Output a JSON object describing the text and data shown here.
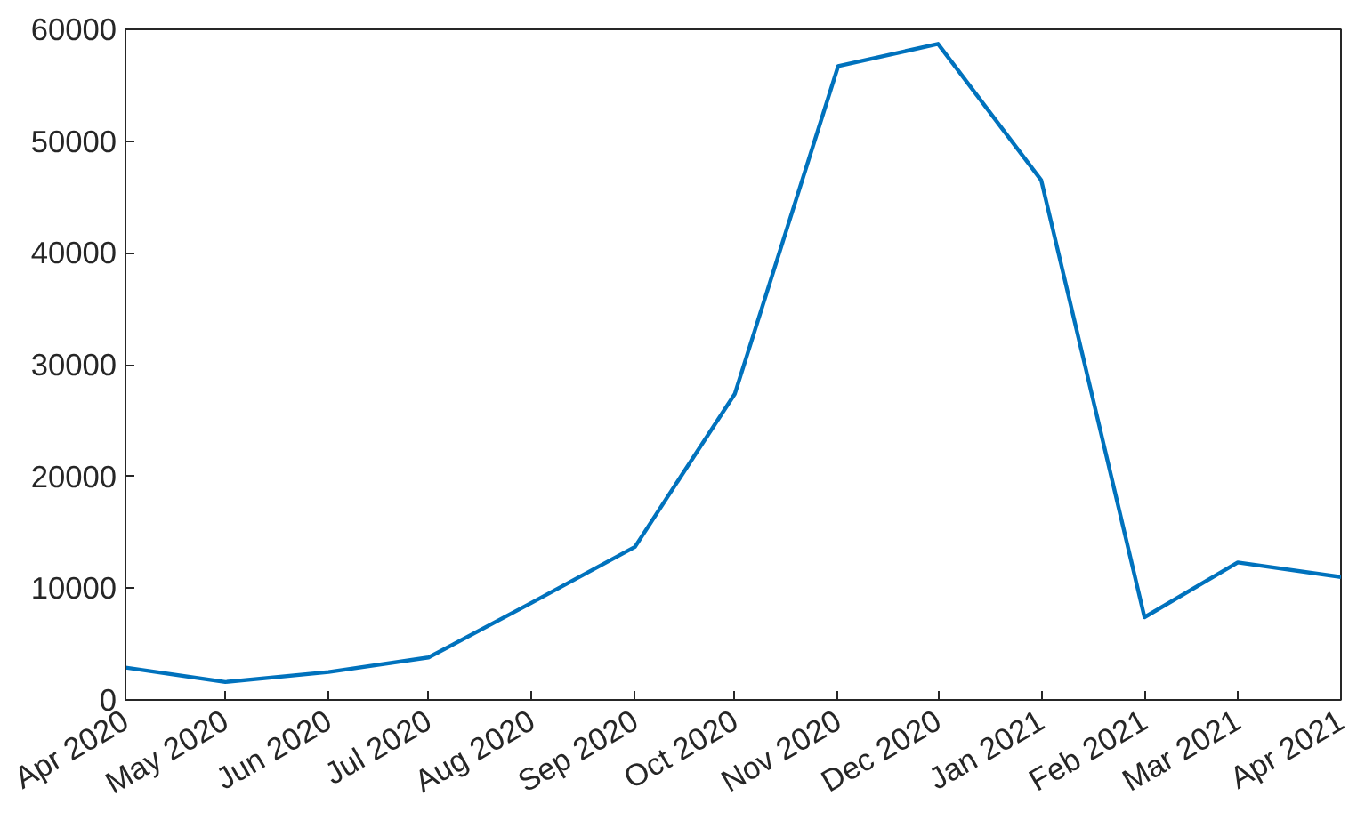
{
  "chart_data": {
    "type": "line",
    "x": [
      "2020-04",
      "2020-05",
      "2020-06",
      "2020-07",
      "2020-08",
      "2020-09",
      "2020-10",
      "2020-11",
      "2020-12",
      "2021-01",
      "2021-02",
      "2021-03",
      "2021-04"
    ],
    "series": [
      {
        "color": "#0072bd",
        "values": [
          2900,
          1600,
          2500,
          3800,
          8700,
          13700,
          27400,
          56700,
          58700,
          46500,
          7400,
          12300,
          11000
        ]
      }
    ],
    "xlim": [
      "2020-04",
      "2021-04"
    ],
    "xticks": [
      {
        "value": "2020-04",
        "label": "Apr 2020"
      },
      {
        "value": "2020-05",
        "label": "May 2020"
      },
      {
        "value": "2020-06",
        "label": "Jun 2020"
      },
      {
        "value": "2020-07",
        "label": "Jul 2020"
      },
      {
        "value": "2020-08",
        "label": "Aug 2020"
      },
      {
        "value": "2020-09",
        "label": "Sep 2020"
      },
      {
        "value": "2020-10",
        "label": "Oct 2020"
      },
      {
        "value": "2020-11",
        "label": "Nov 2020"
      },
      {
        "value": "2020-12",
        "label": "Dec 2020"
      },
      {
        "value": "2021-01",
        "label": "Jan 2021"
      },
      {
        "value": "2021-02",
        "label": "Feb 2021"
      },
      {
        "value": "2021-03",
        "label": "Mar 2021"
      },
      {
        "value": "2021-04",
        "label": "Apr 2021"
      }
    ],
    "ylim": [
      0,
      60000
    ],
    "yticks": [
      0,
      10000,
      20000,
      30000,
      40000,
      50000,
      60000
    ],
    "grid": false,
    "marker": "none",
    "line_style": "solid"
  }
}
